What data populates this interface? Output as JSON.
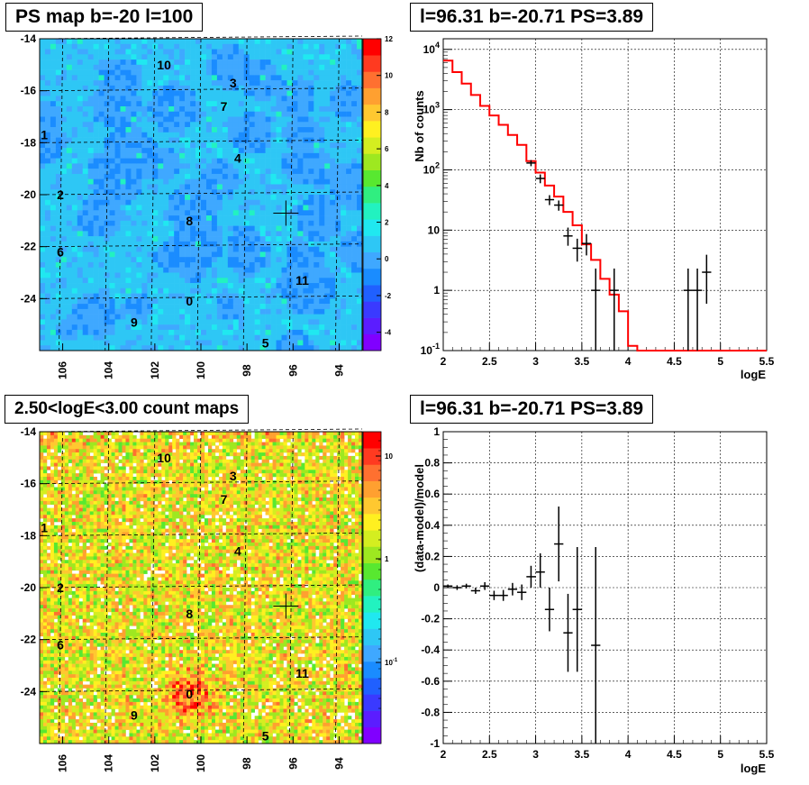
{
  "chart_data": [
    {
      "type": "heatmap",
      "title": "PS map b=-20 l=100",
      "xlabel": "",
      "ylabel": "",
      "xlim": [
        107,
        93
      ],
      "ylim": [
        -26,
        -14
      ],
      "xticks": [
        "106",
        "104",
        "102",
        "100",
        "98",
        "96",
        "94"
      ],
      "yticks": [
        "-14",
        "-16",
        "-18",
        "-20",
        "-22",
        "-24"
      ],
      "colorbar": {
        "range": [
          -5,
          12
        ],
        "ticks": [
          "12",
          "10",
          "8",
          "6",
          "4",
          "2",
          "0",
          "-2",
          "-4"
        ]
      },
      "palette": [
        "#8000ff",
        "#5b1dff",
        "#3a3aff",
        "#2060ff",
        "#1a8cff",
        "#3fa8ff",
        "#2ec7f5",
        "#20e8f0",
        "#22f2c0",
        "#30ee80",
        "#58e830",
        "#9ee820",
        "#d4ee20",
        "#fff020",
        "#ffc830",
        "#ffa030",
        "#ff7030",
        "#ff3a20",
        "#ff0000"
      ],
      "markers": [
        {
          "label": "10",
          "l": 101.6,
          "b": -15.0
        },
        {
          "label": "3",
          "l": 98.6,
          "b": -15.7
        },
        {
          "label": "7",
          "l": 99.0,
          "b": -16.6
        },
        {
          "label": "1",
          "l": 106.8,
          "b": -17.7
        },
        {
          "label": "4",
          "l": 98.4,
          "b": -18.6
        },
        {
          "label": "2",
          "l": 106.1,
          "b": -20.0
        },
        {
          "label": "8",
          "l": 100.5,
          "b": -21.0
        },
        {
          "label": "6",
          "l": 106.1,
          "b": -22.2
        },
        {
          "label": "11",
          "l": 95.6,
          "b": -23.3
        },
        {
          "label": "0",
          "l": 100.5,
          "b": -24.1
        },
        {
          "label": "9",
          "l": 102.9,
          "b": -24.9
        },
        {
          "label": "5",
          "l": 97.2,
          "b": -25.7
        }
      ],
      "crosshair": {
        "l": 96.31,
        "b": -20.71
      }
    },
    {
      "type": "line",
      "title": "l=96.31 b=-20.71 PS=3.89",
      "xlabel": "logE",
      "ylabel": "Nb of counts",
      "xlim": [
        2,
        5.5
      ],
      "ylim": [
        0.1,
        15000
      ],
      "yscale": "log",
      "xticks": [
        "2",
        "2.5",
        "3",
        "3.5",
        "4",
        "4.5",
        "5",
        "5.5"
      ],
      "yticks": [
        {
          "v": 10000,
          "base": "10",
          "exp": "4"
        },
        {
          "v": 1000,
          "base": "10",
          "exp": "3"
        },
        {
          "v": 100,
          "base": "10",
          "exp": "2"
        },
        {
          "v": 10,
          "base": "10",
          "exp": ""
        },
        {
          "v": 1,
          "base": "1",
          "exp": ""
        },
        {
          "v": 0.1,
          "base": "10",
          "exp": "-1"
        }
      ],
      "grid": true,
      "series": [
        {
          "color": "#ff0000",
          "bin_edges": [
            2.0,
            2.1,
            2.2,
            2.3,
            2.4,
            2.5,
            2.6,
            2.7,
            2.8,
            2.9,
            3.0,
            3.1,
            3.2,
            3.3,
            3.4,
            3.5,
            3.6,
            3.7,
            3.8,
            3.9,
            4.0,
            4.1,
            4.2,
            4.3,
            4.4,
            4.5,
            4.6,
            4.7,
            4.8,
            4.9,
            5.0,
            5.1,
            5.2,
            5.3,
            5.4,
            5.5
          ],
          "values": [
            6500,
            4200,
            2700,
            1750,
            1150,
            800,
            560,
            380,
            260,
            140,
            90,
            55,
            36,
            20,
            12,
            5.8,
            3.2,
            1.55,
            0.85,
            0.45,
            0.12,
            0.1,
            0.1,
            0.1,
            0.1,
            0.1,
            0.1,
            0.1,
            0.1,
            0.1,
            0.1,
            0.1,
            0.1,
            0.1,
            0.1
          ]
        },
        {
          "color": "#000000",
          "points": [
            {
              "x": 2.95,
              "y": 130,
              "lo": 115,
              "hi": 145
            },
            {
              "x": 3.05,
              "y": 72,
              "lo": 60,
              "hi": 84
            },
            {
              "x": 3.15,
              "y": 32,
              "lo": 26,
              "hi": 38
            },
            {
              "x": 3.25,
              "y": 26,
              "lo": 21,
              "hi": 31
            },
            {
              "x": 3.35,
              "y": 8,
              "lo": 5.5,
              "hi": 11
            },
            {
              "x": 3.45,
              "y": 5,
              "lo": 3,
              "hi": 7.2
            },
            {
              "x": 3.55,
              "y": 6,
              "lo": 3.8,
              "hi": 8.6
            },
            {
              "x": 3.65,
              "y": 1,
              "lo": 0.1,
              "hi": 2.3
            },
            {
              "x": 3.85,
              "y": 1,
              "lo": 0.1,
              "hi": 2.3
            },
            {
              "x": 4.65,
              "y": 1,
              "lo": 0.1,
              "hi": 2.3
            },
            {
              "x": 4.75,
              "y": 1,
              "lo": 0.1,
              "hi": 2.3
            },
            {
              "x": 4.85,
              "y": 2,
              "lo": 0.6,
              "hi": 3.9
            }
          ]
        }
      ]
    },
    {
      "type": "heatmap",
      "title": "2.50<logE<3.00 count maps",
      "xlabel": "",
      "ylabel": "",
      "xlim": [
        107,
        93
      ],
      "ylim": [
        -26,
        -14
      ],
      "xticks": [
        "106",
        "104",
        "102",
        "100",
        "98",
        "96",
        "94"
      ],
      "yticks": [
        "-14",
        "-16",
        "-18",
        "-20",
        "-22",
        "-24"
      ],
      "colorbar": {
        "scale": "log",
        "ticks": [
          {
            "base": "10",
            "exp": ""
          },
          {
            "base": "1",
            "exp": ""
          },
          {
            "base": "10",
            "exp": "-1"
          }
        ]
      },
      "palette": [
        "#8000ff",
        "#5b1dff",
        "#3a3aff",
        "#2060ff",
        "#1a8cff",
        "#3fa8ff",
        "#2ec7f5",
        "#20e8f0",
        "#22f2c0",
        "#30ee80",
        "#58e830",
        "#9ee820",
        "#d4ee20",
        "#fff020",
        "#ffc830",
        "#ffa030",
        "#ff7030",
        "#ff3a20",
        "#ff0000"
      ],
      "markers": [
        {
          "label": "10",
          "l": 101.6,
          "b": -15.0
        },
        {
          "label": "3",
          "l": 98.6,
          "b": -15.7
        },
        {
          "label": "7",
          "l": 99.0,
          "b": -16.6
        },
        {
          "label": "1",
          "l": 106.8,
          "b": -17.7
        },
        {
          "label": "4",
          "l": 98.4,
          "b": -18.6
        },
        {
          "label": "2",
          "l": 106.1,
          "b": -20.0
        },
        {
          "label": "8",
          "l": 100.5,
          "b": -21.0
        },
        {
          "label": "6",
          "l": 106.1,
          "b": -22.2
        },
        {
          "label": "11",
          "l": 95.6,
          "b": -23.3
        },
        {
          "label": "0",
          "l": 100.5,
          "b": -24.1
        },
        {
          "label": "9",
          "l": 102.9,
          "b": -24.9
        },
        {
          "label": "5",
          "l": 97.2,
          "b": -25.7
        }
      ],
      "crosshair": {
        "l": 96.31,
        "b": -20.71
      }
    },
    {
      "type": "scatter",
      "title": "l=96.31 b=-20.71 PS=3.89",
      "xlabel": "logE",
      "ylabel": "(data-model)/model",
      "xlim": [
        2,
        5.5
      ],
      "ylim": [
        -1,
        1
      ],
      "xticks": [
        "2",
        "2.5",
        "3",
        "3.5",
        "4",
        "4.5",
        "5",
        "5.5"
      ],
      "yticks": [
        "1",
        "0.8",
        "0.6",
        "0.4",
        "0.2",
        "0",
        "-0.2",
        "-0.4",
        "-0.6",
        "-0.8",
        "-1"
      ],
      "grid": true,
      "points": [
        {
          "x": 2.05,
          "y": 0.01,
          "lo": 0.0,
          "hi": 0.02
        },
        {
          "x": 2.15,
          "y": 0.0,
          "lo": -0.015,
          "hi": 0.015
        },
        {
          "x": 2.25,
          "y": 0.01,
          "lo": -0.005,
          "hi": 0.025
        },
        {
          "x": 2.35,
          "y": -0.02,
          "lo": -0.04,
          "hi": 0.0
        },
        {
          "x": 2.45,
          "y": 0.01,
          "lo": -0.015,
          "hi": 0.035
        },
        {
          "x": 2.55,
          "y": -0.05,
          "lo": -0.08,
          "hi": -0.02
        },
        {
          "x": 2.65,
          "y": -0.05,
          "lo": -0.085,
          "hi": -0.015
        },
        {
          "x": 2.75,
          "y": -0.01,
          "lo": -0.05,
          "hi": 0.03
        },
        {
          "x": 2.85,
          "y": -0.03,
          "lo": -0.08,
          "hi": 0.02
        },
        {
          "x": 2.95,
          "y": 0.07,
          "lo": 0.0,
          "hi": 0.14
        },
        {
          "x": 3.05,
          "y": 0.1,
          "lo": 0.0,
          "hi": 0.22
        },
        {
          "x": 3.15,
          "y": -0.14,
          "lo": -0.28,
          "hi": 0.0
        },
        {
          "x": 3.25,
          "y": 0.28,
          "lo": 0.04,
          "hi": 0.52
        },
        {
          "x": 3.35,
          "y": -0.29,
          "lo": -0.54,
          "hi": -0.04
        },
        {
          "x": 3.45,
          "y": -0.14,
          "lo": -0.54,
          "hi": 0.26
        },
        {
          "x": 3.65,
          "y": -0.37,
          "lo": -1.0,
          "hi": 0.26
        }
      ]
    }
  ]
}
